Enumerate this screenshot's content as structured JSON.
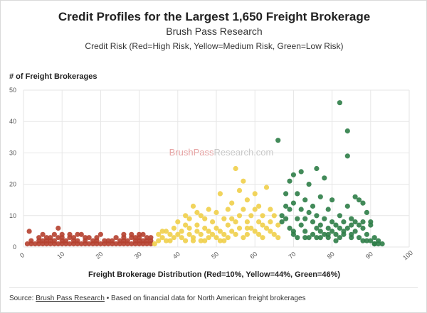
{
  "header": {
    "title": "Credit Profiles for the Largest 1,650 Freight Brokerage",
    "subtitle": "Brush Pass Research",
    "risk_legend": "Credit Risk (Red=High Risk, Yellow=Medium Risk, Green=Low Risk)"
  },
  "watermark": {
    "part1": "BrushPass",
    "part2": "Research.com",
    "color1": "#e7a4a4",
    "color2": "#c9c9c9"
  },
  "footer": {
    "source_label": "Source:",
    "source_link": "Brush Pass Research",
    "note": "• Based on financial data for North American freight brokerages"
  },
  "chart_data": {
    "type": "scatter",
    "title": "Credit Profiles for the Largest 1,650 Freight Brokerage",
    "subtitle": "Brush Pass Research",
    "ylabel": "# of Freight Brokerages",
    "xlabel": "Freight Brokerage Distribution (Red=10%, Yellow=44%, Green=46%)",
    "xlim": [
      0,
      100
    ],
    "ylim": [
      0,
      50
    ],
    "xticks": [
      0,
      10,
      20,
      30,
      40,
      50,
      60,
      70,
      80,
      90,
      100
    ],
    "yticks": [
      0,
      10,
      20,
      30,
      40,
      50
    ],
    "grid": true,
    "series": [
      {
        "color": "#b5402f",
        "points": [
          [
            1,
            1
          ],
          [
            2,
            1
          ],
          [
            3,
            1
          ],
          [
            4,
            1
          ],
          [
            5,
            1
          ],
          [
            6,
            1
          ],
          [
            7,
            1
          ],
          [
            8,
            1
          ],
          [
            9,
            1
          ],
          [
            10,
            1
          ],
          [
            11,
            1
          ],
          [
            12,
            1
          ],
          [
            13,
            1
          ],
          [
            14,
            1
          ],
          [
            15,
            1
          ],
          [
            16,
            1
          ],
          [
            17,
            1
          ],
          [
            18,
            1
          ],
          [
            19,
            1
          ],
          [
            20,
            1
          ],
          [
            21,
            1
          ],
          [
            22,
            1
          ],
          [
            23,
            1
          ],
          [
            24,
            1
          ],
          [
            25,
            1
          ],
          [
            26,
            1
          ],
          [
            27,
            1
          ],
          [
            28,
            1
          ],
          [
            29,
            1
          ],
          [
            30,
            1
          ],
          [
            31,
            1
          ],
          [
            32,
            1
          ],
          [
            33,
            1
          ],
          [
            2,
            2
          ],
          [
            4,
            2
          ],
          [
            5,
            2
          ],
          [
            6,
            2
          ],
          [
            7,
            2
          ],
          [
            8,
            2
          ],
          [
            10,
            2
          ],
          [
            11,
            2
          ],
          [
            13,
            2
          ],
          [
            14,
            2
          ],
          [
            16,
            2
          ],
          [
            18,
            2
          ],
          [
            19,
            2
          ],
          [
            21,
            2
          ],
          [
            22,
            2
          ],
          [
            23,
            2
          ],
          [
            25,
            2
          ],
          [
            26,
            2
          ],
          [
            27,
            2
          ],
          [
            29,
            2
          ],
          [
            30,
            2
          ],
          [
            31,
            2
          ],
          [
            32,
            2
          ],
          [
            33,
            2
          ],
          [
            4,
            3
          ],
          [
            6,
            3
          ],
          [
            7,
            3
          ],
          [
            9,
            3
          ],
          [
            10,
            3
          ],
          [
            12,
            3
          ],
          [
            13,
            3
          ],
          [
            16,
            3
          ],
          [
            17,
            3
          ],
          [
            19,
            3
          ],
          [
            24,
            3
          ],
          [
            26,
            3
          ],
          [
            28,
            3
          ],
          [
            29,
            3
          ],
          [
            30,
            3
          ],
          [
            32,
            3
          ],
          [
            33,
            3
          ],
          [
            5,
            4
          ],
          [
            8,
            4
          ],
          [
            10,
            4
          ],
          [
            12,
            4
          ],
          [
            14,
            4
          ],
          [
            15,
            4
          ],
          [
            20,
            4
          ],
          [
            26,
            4
          ],
          [
            28,
            4
          ],
          [
            30,
            4
          ],
          [
            31,
            4
          ],
          [
            1.5,
            5
          ],
          [
            9,
            6
          ]
        ]
      },
      {
        "color": "#f0cf4a",
        "points": [
          [
            34,
            1
          ],
          [
            35,
            2
          ],
          [
            35,
            4
          ],
          [
            36,
            3
          ],
          [
            37,
            5
          ],
          [
            38,
            4
          ],
          [
            38,
            2
          ],
          [
            39,
            6
          ],
          [
            39,
            3
          ],
          [
            40,
            4
          ],
          [
            40,
            8
          ],
          [
            41,
            5
          ],
          [
            41,
            3
          ],
          [
            42,
            2
          ],
          [
            42,
            10
          ],
          [
            42,
            7
          ],
          [
            43,
            4
          ],
          [
            43,
            6
          ],
          [
            44,
            13
          ],
          [
            44,
            3
          ],
          [
            45,
            7
          ],
          [
            45,
            5
          ],
          [
            46,
            4
          ],
          [
            46,
            10
          ],
          [
            47,
            6
          ],
          [
            47,
            2
          ],
          [
            47,
            9
          ],
          [
            48,
            5
          ],
          [
            48,
            12
          ],
          [
            48,
            3
          ],
          [
            49,
            8
          ],
          [
            49,
            4
          ],
          [
            50,
            11
          ],
          [
            50,
            6
          ],
          [
            51,
            17
          ],
          [
            51,
            5
          ],
          [
            51,
            2
          ],
          [
            52,
            9
          ],
          [
            52,
            4
          ],
          [
            53,
            7
          ],
          [
            53,
            12
          ],
          [
            53,
            3
          ],
          [
            54,
            5
          ],
          [
            54,
            14
          ],
          [
            54,
            9
          ],
          [
            55,
            25
          ],
          [
            55,
            4
          ],
          [
            55,
            8
          ],
          [
            56,
            10
          ],
          [
            56,
            6
          ],
          [
            56,
            18
          ],
          [
            57,
            21
          ],
          [
            57,
            3
          ],
          [
            57,
            12
          ],
          [
            58,
            8
          ],
          [
            58,
            15
          ],
          [
            58,
            4
          ],
          [
            59,
            10
          ],
          [
            59,
            6
          ],
          [
            60,
            12
          ],
          [
            60,
            5
          ],
          [
            60,
            17
          ],
          [
            61,
            8
          ],
          [
            61,
            4
          ],
          [
            61,
            13
          ],
          [
            62,
            10
          ],
          [
            62,
            3
          ],
          [
            63,
            6
          ],
          [
            63,
            19
          ],
          [
            64,
            8
          ],
          [
            64,
            12
          ],
          [
            64,
            5
          ],
          [
            65,
            4
          ],
          [
            65,
            10
          ],
          [
            66,
            7
          ],
          [
            44,
            2
          ],
          [
            46,
            2
          ],
          [
            50,
            3
          ],
          [
            52,
            2
          ],
          [
            36,
            5
          ],
          [
            37,
            2
          ],
          [
            43,
            9
          ],
          [
            45,
            11
          ],
          [
            58,
            6
          ],
          [
            62,
            7
          ],
          [
            66,
            3
          ]
        ]
      },
      {
        "color": "#2e7d47",
        "points": [
          [
            66,
            34
          ],
          [
            67,
            10
          ],
          [
            67,
            8
          ],
          [
            68,
            13
          ],
          [
            68,
            17
          ],
          [
            68,
            9
          ],
          [
            69,
            21
          ],
          [
            69,
            6
          ],
          [
            69,
            12
          ],
          [
            70,
            23
          ],
          [
            70,
            5
          ],
          [
            70,
            14
          ],
          [
            71,
            9
          ],
          [
            71,
            17
          ],
          [
            71,
            3
          ],
          [
            72,
            7
          ],
          [
            72,
            12
          ],
          [
            72,
            24
          ],
          [
            73,
            5
          ],
          [
            73,
            15
          ],
          [
            73,
            9
          ],
          [
            74,
            11
          ],
          [
            74,
            20
          ],
          [
            74,
            3
          ],
          [
            75,
            8
          ],
          [
            75,
            13
          ],
          [
            75,
            4
          ],
          [
            76,
            6
          ],
          [
            76,
            10
          ],
          [
            76,
            25
          ],
          [
            77,
            3
          ],
          [
            77,
            7
          ],
          [
            77,
            16
          ],
          [
            77,
            5
          ],
          [
            78,
            22
          ],
          [
            78,
            9
          ],
          [
            78,
            4
          ],
          [
            79,
            6
          ],
          [
            79,
            12
          ],
          [
            79,
            3
          ],
          [
            80,
            15
          ],
          [
            80,
            5
          ],
          [
            80,
            8
          ],
          [
            81,
            4
          ],
          [
            81,
            7
          ],
          [
            81,
            2
          ],
          [
            82,
            10
          ],
          [
            82,
            3
          ],
          [
            82,
            46
          ],
          [
            83,
            5
          ],
          [
            83,
            8
          ],
          [
            83,
            4
          ],
          [
            84,
            13
          ],
          [
            84,
            6
          ],
          [
            84,
            37
          ],
          [
            84,
            29
          ],
          [
            85,
            7
          ],
          [
            85,
            3
          ],
          [
            85,
            9
          ],
          [
            86,
            16
          ],
          [
            86,
            5
          ],
          [
            86,
            8
          ],
          [
            87,
            15
          ],
          [
            87,
            7
          ],
          [
            87,
            3
          ],
          [
            88,
            8
          ],
          [
            88,
            14
          ],
          [
            88,
            6
          ],
          [
            89,
            2
          ],
          [
            89,
            11
          ],
          [
            89,
            4
          ],
          [
            90,
            8
          ],
          [
            90,
            2
          ],
          [
            90,
            7
          ],
          [
            91,
            3
          ],
          [
            91,
            1
          ],
          [
            91,
            1
          ],
          [
            92,
            2
          ],
          [
            92,
            1
          ],
          [
            93,
            1
          ],
          [
            70,
            4
          ],
          [
            73,
            3
          ],
          [
            76,
            3
          ],
          [
            79,
            4
          ],
          [
            82,
            6
          ],
          [
            85,
            4
          ],
          [
            88,
            2
          ]
        ]
      }
    ]
  }
}
